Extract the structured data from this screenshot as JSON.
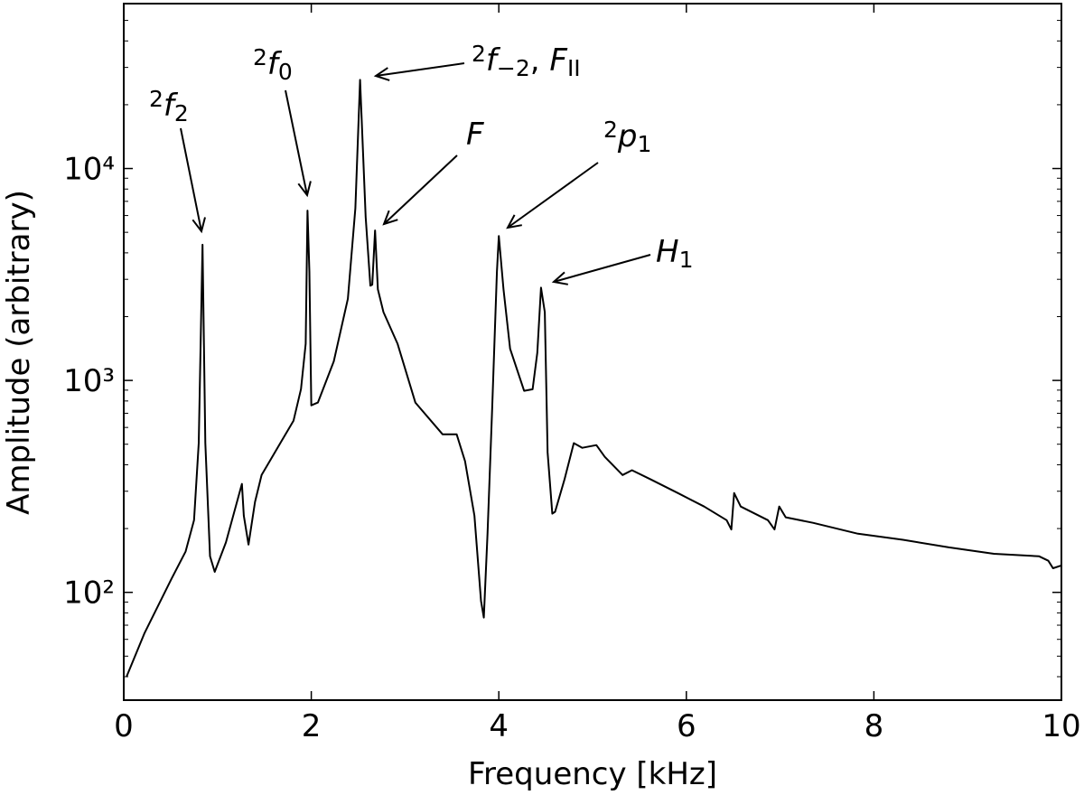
{
  "chart_data": {
    "type": "line",
    "xlabel": "Frequency [kHz]",
    "ylabel": "Amplitude (arbitrary)",
    "color": "#000000",
    "yscale": "log",
    "xlim": [
      0,
      10
    ],
    "xticks": [
      0,
      2,
      4,
      6,
      8,
      10
    ],
    "ylim": [
      31,
      60000
    ],
    "yticks": [
      {
        "value": 100,
        "label": "10²"
      },
      {
        "value": 1000,
        "label": "10³"
      },
      {
        "value": 10000,
        "label": "10⁴"
      }
    ],
    "yminorticks": [
      40,
      50,
      60,
      70,
      80,
      90,
      200,
      300,
      400,
      500,
      600,
      700,
      800,
      900,
      2000,
      3000,
      4000,
      5000,
      6000,
      7000,
      8000,
      9000,
      20000,
      30000,
      40000,
      50000
    ],
    "x": [
      0.03,
      0.22,
      0.51,
      0.66,
      0.75,
      0.8,
      0.84,
      0.87,
      0.92,
      0.97,
      1.09,
      1.26,
      1.28,
      1.33,
      1.4,
      1.47,
      1.67,
      1.81,
      1.89,
      1.94,
      1.96,
      1.98,
      2.0,
      2.07,
      2.24,
      2.39,
      2.47,
      2.52,
      2.58,
      2.63,
      2.65,
      2.68,
      2.71,
      2.77,
      2.92,
      3.11,
      3.4,
      3.55,
      3.64,
      3.74,
      3.81,
      3.84,
      3.88,
      3.93,
      3.98,
      4.0,
      4.05,
      4.12,
      4.27,
      4.36,
      4.41,
      4.45,
      4.49,
      4.52,
      4.57,
      4.6,
      4.7,
      4.8,
      4.89,
      5.04,
      5.13,
      5.32,
      5.42,
      5.62,
      5.91,
      6.19,
      6.43,
      6.48,
      6.51,
      6.58,
      6.87,
      6.94,
      6.99,
      7.06,
      7.35,
      7.83,
      8.31,
      8.8,
      9.28,
      9.76,
      9.86,
      9.91,
      10.0
    ],
    "values": [
      40,
      64,
      116,
      156,
      219,
      506,
      4370,
      506,
      148,
      125,
      172,
      325,
      230,
      168,
      267,
      358,
      506,
      645,
      910,
      1490,
      6330,
      3260,
      763,
      786,
      1230,
      2430,
      6500,
      26200,
      5900,
      2800,
      2830,
      5100,
      2690,
      2100,
      1490,
      786,
      557,
      557,
      416,
      230,
      91,
      76,
      189,
      750,
      3260,
      4800,
      2690,
      1410,
      893,
      908,
      1350,
      2740,
      2100,
      458,
      235,
      240,
      341,
      506,
      481,
      495,
      436,
      358,
      377,
      341,
      294,
      254,
      219,
      198,
      294,
      254,
      219,
      198,
      254,
      226,
      213,
      189,
      177,
      163,
      152,
      148,
      141,
      130,
      134
    ],
    "annotations": [
      {
        "parts": [
          {
            "text": "2",
            "style": "sup"
          },
          {
            "text": "f",
            "style": "italic"
          },
          {
            "text": "2",
            "style": "sub"
          }
        ]
      },
      {
        "parts": [
          {
            "text": "2",
            "style": "sup"
          },
          {
            "text": "f",
            "style": "italic"
          },
          {
            "text": "0",
            "style": "sub"
          }
        ]
      },
      {
        "parts": [
          {
            "text": "2",
            "style": "sup"
          },
          {
            "text": "f",
            "style": "italic"
          },
          {
            "text": "−2",
            "style": "sub"
          },
          {
            "text": ", ",
            "style": "plain"
          },
          {
            "text": "F",
            "style": "italic"
          },
          {
            "text": "II",
            "style": "sub"
          }
        ]
      },
      {
        "parts": [
          {
            "text": "F",
            "style": "italic"
          }
        ]
      },
      {
        "parts": [
          {
            "text": "2",
            "style": "sup"
          },
          {
            "text": "p",
            "style": "italic"
          },
          {
            "text": "1",
            "style": "sub"
          }
        ]
      },
      {
        "parts": [
          {
            "text": "H",
            "style": "italic"
          },
          {
            "text": "1",
            "style": "sub"
          }
        ]
      }
    ]
  }
}
